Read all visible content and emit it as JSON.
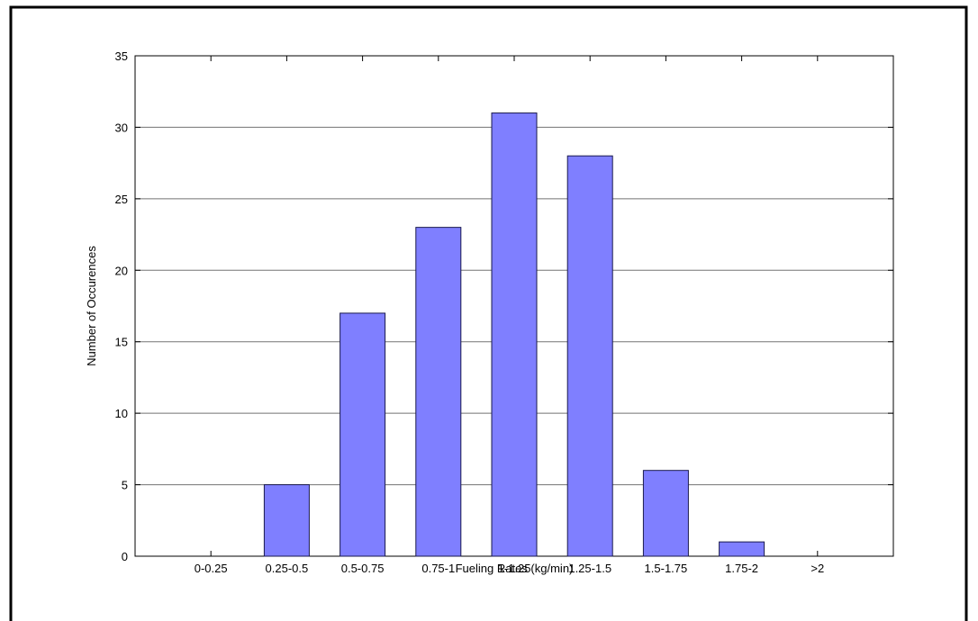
{
  "chart_data": {
    "type": "bar",
    "x_label": "Fueling Rates (kg/min)",
    "y_label": "Number of Occurences",
    "categories": [
      "0-0.25",
      "0.25-0.5",
      "0.5-0.75",
      "0.75-1",
      "1-1.25",
      "1.25-1.5",
      "1.5-1.75",
      "1.75-2",
      ">2"
    ],
    "values": [
      0,
      5,
      17,
      23,
      31,
      28,
      6,
      1,
      0
    ],
    "color": "#7f7fff",
    "ylim": [
      0,
      35
    ],
    "yticks": [
      0,
      5,
      10,
      15,
      20,
      25,
      30,
      35
    ],
    "grid": true
  }
}
